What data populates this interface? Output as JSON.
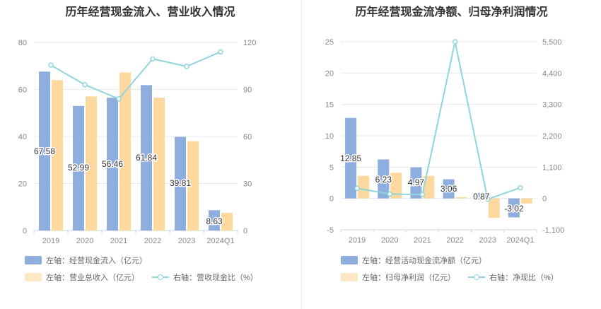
{
  "chart_data": [
    {
      "type": "bar",
      "title": "历年经营现金流入、营业收入情况",
      "categories": [
        "2019",
        "2020",
        "2021",
        "2022",
        "2023",
        "2024Q1"
      ],
      "series": [
        {
          "name": "左轴：经营现金流入（亿元）",
          "axis": "left",
          "kind": "bar",
          "color": "#8eaede",
          "values": [
            67.58,
            52.99,
            56.46,
            61.84,
            39.81,
            8.63
          ],
          "labels": [
            "67.58",
            "52.99",
            "56.46",
            "61.84",
            "39.81",
            "8.63"
          ]
        },
        {
          "name": "左轴：营业总收入（亿元）",
          "axis": "left",
          "kind": "bar",
          "color": "#fdd9a0",
          "values": [
            64,
            57,
            67.2,
            56.5,
            38,
            7.5
          ]
        },
        {
          "name": "右轴：营收现金比（%）",
          "axis": "right",
          "kind": "line",
          "color": "#8fd5dc",
          "values": [
            105.5,
            93,
            84,
            109.5,
            104.7,
            114
          ]
        }
      ],
      "left_axis": {
        "ylim": [
          0,
          80
        ],
        "ticks": [
          "0",
          "20",
          "40",
          "60",
          "80"
        ]
      },
      "right_axis": {
        "ylim": [
          0,
          120
        ],
        "ticks": [
          "0",
          "30",
          "60",
          "90",
          "120"
        ]
      },
      "grid": true,
      "legend_position": "bottom-left"
    },
    {
      "type": "bar",
      "title": "历年经营现金流净额、归母净利润情况",
      "categories": [
        "2019",
        "2020",
        "2021",
        "2022",
        "2023",
        "2024Q1"
      ],
      "series": [
        {
          "name": "左轴：经营活动现金流净额（亿元）",
          "axis": "left",
          "kind": "bar",
          "color": "#8eaede",
          "values": [
            12.85,
            6.23,
            4.97,
            3.06,
            0.87,
            -3.02
          ],
          "labels": [
            "12.85",
            "6.23",
            "4.97",
            "3.06",
            "0.87",
            "-3.02"
          ]
        },
        {
          "name": "左轴：归母净利润（亿元）",
          "axis": "left",
          "kind": "bar",
          "color": "#fdd9a0",
          "values": [
            3.6,
            4.1,
            3.6,
            0.2,
            -3.1,
            -0.8
          ]
        },
        {
          "name": "右轴：净现比（%）",
          "axis": "right",
          "kind": "line",
          "color": "#8fd5dc",
          "values": [
            357,
            152,
            138,
            5500,
            -28,
            377
          ]
        }
      ],
      "left_axis": {
        "ylim": [
          -5,
          25
        ],
        "ticks": [
          "-5",
          "0",
          "5",
          "10",
          "15",
          "20",
          "25"
        ]
      },
      "right_axis": {
        "ylim": [
          -1100,
          5500
        ],
        "ticks": [
          "-1,100",
          "0",
          "1,100",
          "2,200",
          "3,300",
          "4,400",
          "5,500"
        ]
      },
      "grid": true,
      "legend_position": "bottom-left"
    }
  ]
}
